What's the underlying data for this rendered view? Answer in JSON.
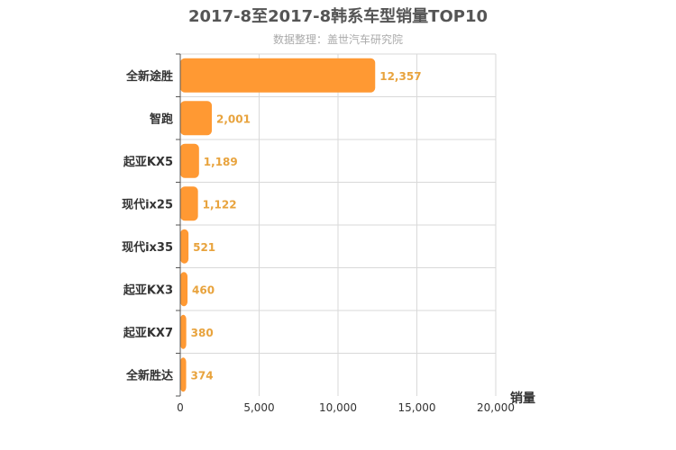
{
  "chart_data": {
    "type": "bar",
    "orientation": "horizontal",
    "title": "2017-8至2017-8韩系车型销量TOP10",
    "subtitle": "数据整理：盖世汽车研究院",
    "xlabel": "销量",
    "ylabel": "",
    "categories": [
      "全新途胜",
      "智跑",
      "起亚KX5",
      "现代ix25",
      "现代ix35",
      "起亚KX3",
      "起亚KX7",
      "全新胜达"
    ],
    "values": [
      12357,
      2001,
      1189,
      1122,
      521,
      460,
      380,
      374
    ],
    "value_labels": [
      "12,357",
      "2,001",
      "1,189",
      "1,122",
      "521",
      "460",
      "380",
      "374"
    ],
    "xlim": [
      0,
      20000
    ],
    "xticks": [
      0,
      5000,
      10000,
      15000,
      20000
    ],
    "xtick_labels": [
      "0",
      "5,000",
      "10,000",
      "15,000",
      "20,000"
    ],
    "grid": true,
    "legend": "none",
    "colors": {
      "bar": "#ff9933",
      "value_label": "#e8a33d",
      "grid": "#d9d9d9",
      "axis": "#555555"
    }
  }
}
